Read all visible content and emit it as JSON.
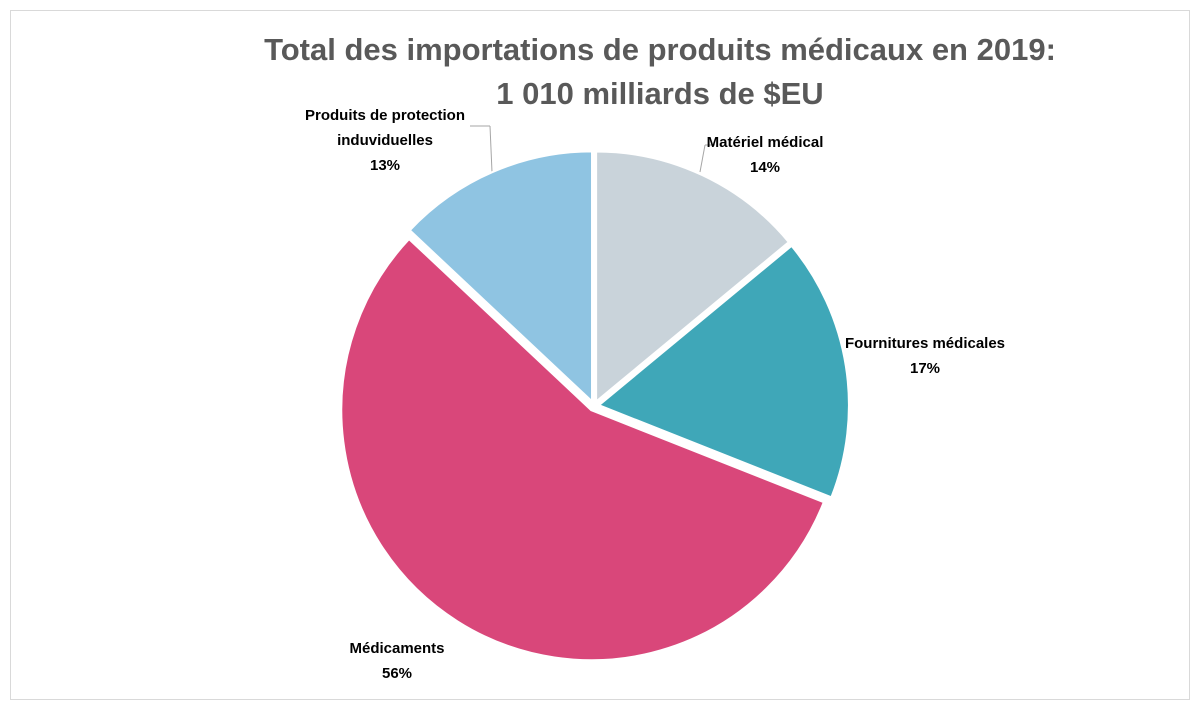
{
  "chart_data": {
    "type": "pie",
    "title": "Total des importations de produits médicaux en 2019:\n1 010 milliards de $EU",
    "categories": [
      "Matériel médical",
      "Fournitures médicales",
      "Médicaments",
      "Produits de protection\ninduviduelles"
    ],
    "values": [
      14,
      17,
      56,
      13
    ],
    "value_labels": [
      "14%",
      "17%",
      "56%",
      "13%"
    ],
    "colors": [
      "#c9d3da",
      "#3fa7b8",
      "#d9477a",
      "#8fc4e2"
    ]
  }
}
